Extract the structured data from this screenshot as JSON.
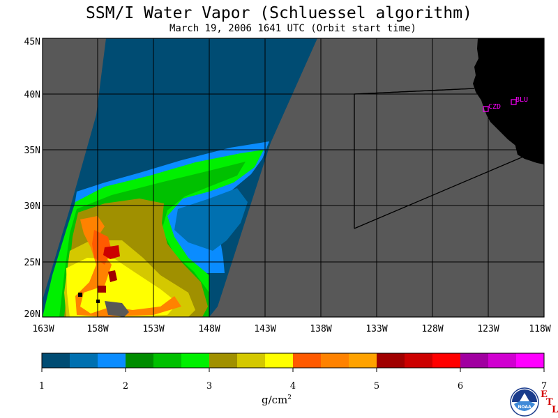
{
  "title": "SSM/I Water Vapor (Schluessel algorithm)",
  "subtitle": "March 19, 2006  1641 UTC  (Orbit start time)",
  "axes": {
    "lat_labels": [
      "45N",
      "40N",
      "35N",
      "30N",
      "25N",
      "20N"
    ],
    "lon_labels": [
      "163W",
      "158W",
      "153W",
      "148W",
      "143W",
      "138W",
      "133W",
      "128W",
      "123W",
      "118W"
    ]
  },
  "colorbar": {
    "ticks": [
      "1",
      "2",
      "3",
      "4",
      "5",
      "6",
      "7"
    ],
    "unit": "g/cm",
    "unit_exp": "2",
    "colors": [
      "#004c73",
      "#0070b0",
      "#0a8cff",
      "#008c00",
      "#00c000",
      "#00f000",
      "#a09000",
      "#d4c800",
      "#ffff00",
      "#ff5a00",
      "#ff8200",
      "#ffa200",
      "#a00000",
      "#cc0000",
      "#ff0000",
      "#a000a0",
      "#d000d0",
      "#ff00ff"
    ]
  },
  "stations": [
    {
      "label": "CZD"
    },
    {
      "label": "BLU"
    }
  ],
  "logo": {
    "text": "NOAA",
    "letters": [
      "E",
      "T",
      "L"
    ]
  },
  "map_colors": {
    "land": "#000000",
    "no_data": "#585858",
    "grid": "#000000"
  }
}
